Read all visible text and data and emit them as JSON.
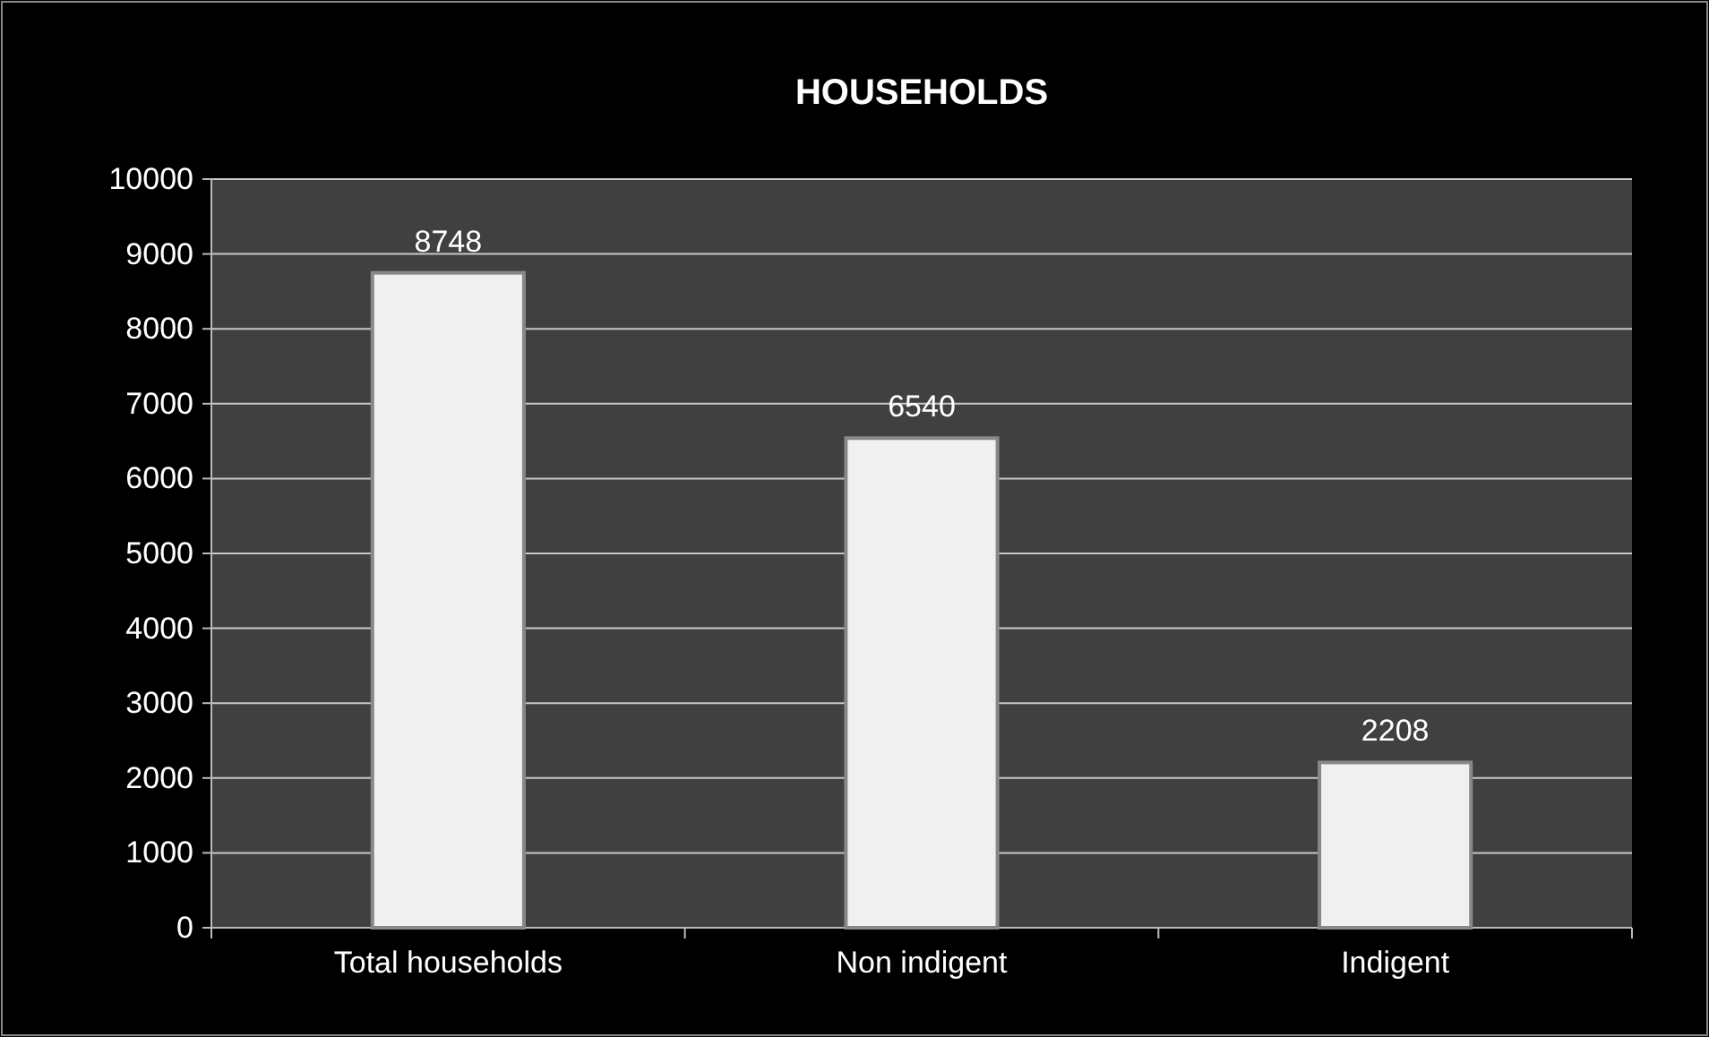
{
  "chart_data": {
    "type": "bar",
    "title": "HOUSEHOLDS",
    "categories": [
      "Total households",
      "Non indigent",
      "Indigent"
    ],
    "values": [
      8748,
      6540,
      2208
    ],
    "color": "#f0f0f0",
    "ylim": [
      0,
      10000
    ],
    "yticks": [
      0,
      1000,
      2000,
      3000,
      4000,
      5000,
      6000,
      7000,
      8000,
      9000,
      10000
    ],
    "grid": "y",
    "data_labels": true
  }
}
